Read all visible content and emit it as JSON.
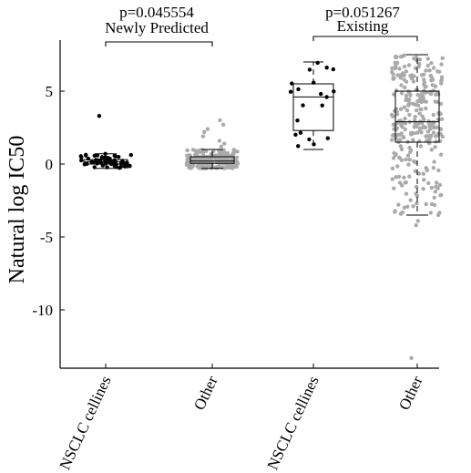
{
  "chart_data": {
    "type": "box",
    "ylabel": "Natural log IC50",
    "ylim": [
      -14,
      8.5
    ],
    "yticks": [
      -10,
      -5,
      0,
      5
    ],
    "ytick_labels": [
      "-10",
      "-5",
      "0",
      "5"
    ],
    "categories": [
      "NSCLC cellines",
      "Other",
      "NSCLC cellines",
      "Other"
    ],
    "point_colors": [
      "#000000",
      "#aaaaaa",
      "#000000",
      "#aaaaaa"
    ],
    "groups": [
      {
        "label": "Newly Predicted",
        "pvalue": "p=0.045554",
        "categories": [
          0,
          1
        ]
      },
      {
        "label": "Existing",
        "pvalue": "p=0.051267",
        "categories": [
          2,
          3
        ]
      }
    ],
    "boxes": [
      {
        "min": -0.3,
        "q1": 0.0,
        "median": 0.15,
        "q3": 0.3,
        "max": 0.7,
        "n_points": 60,
        "outliers": [
          3.3
        ]
      },
      {
        "min": -0.3,
        "q1": 0.05,
        "median": 0.2,
        "q3": 0.5,
        "max": 1.0,
        "n_points": 220,
        "outliers": [
          3.0,
          2.7,
          2.4,
          2.2,
          1.9,
          1.6,
          1.4,
          1.2
        ]
      },
      {
        "min": 1.0,
        "q1": 2.3,
        "median": 4.6,
        "q3": 5.5,
        "max": 7.0,
        "n_points": 20,
        "outliers": []
      },
      {
        "min": -3.5,
        "q1": 1.5,
        "median": 2.9,
        "q3": 5.0,
        "max": 7.5,
        "n_points": 300,
        "outliers": [
          -4.2,
          -3.9,
          -13.3
        ]
      }
    ]
  }
}
